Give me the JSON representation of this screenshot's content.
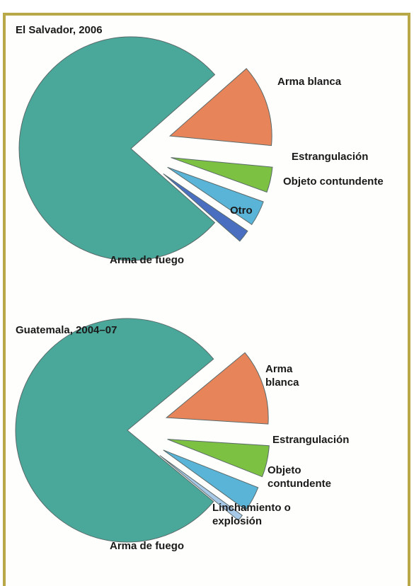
{
  "chart_data": [
    {
      "type": "pie",
      "title": "El Salvador, 2006",
      "categories": [
        "Arma de fuego",
        "Arma blanca",
        "Estrangulación",
        "Objeto contundente",
        "Otro"
      ],
      "values": [
        77,
        13,
        4,
        4,
        2
      ],
      "colors": [
        "#4aa89a",
        "#e8845a",
        "#7cc142",
        "#5ab4d8",
        "#4a6fc0"
      ]
    },
    {
      "type": "pie",
      "title": "Guatemala, 2004–07",
      "categories": [
        "Arma de fuego",
        "Arma blanca",
        "Estrangulación",
        "Objeto contundente",
        "Linchamiento o explosión"
      ],
      "values": [
        78,
        12,
        5,
        4,
        1
      ],
      "colors": [
        "#4aa89a",
        "#e8845a",
        "#7cc142",
        "#5ab4d8",
        "#a8c8e8"
      ]
    }
  ]
}
